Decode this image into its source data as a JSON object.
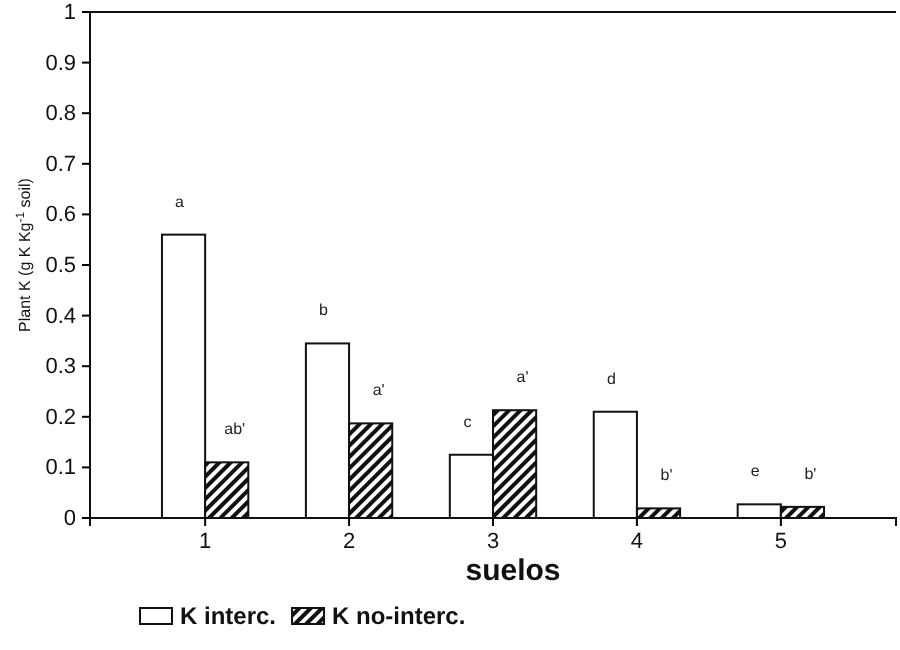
{
  "chart_data": {
    "type": "bar",
    "xlabel": "suelos",
    "ylabel": "Plant K (g K Kg$^{-1}$ soil)",
    "categories": [
      "1",
      "2",
      "3",
      "4",
      "5"
    ],
    "series": [
      {
        "name": "K interc.",
        "color": "#ffffff",
        "values": [
          0.56,
          0.345,
          0.125,
          0.21,
          0.027
        ]
      },
      {
        "name": "K no-interc.",
        "color": "#111111",
        "values": [
          0.11,
          0.187,
          0.213,
          0.019,
          0.022
        ]
      }
    ],
    "ylim": [
      0,
      1
    ],
    "yticks": [
      0,
      0.1,
      0.2,
      0.3,
      0.4,
      0.5,
      0.6,
      0.7,
      0.8,
      0.9,
      1
    ],
    "annotations": [
      {
        "text": "a",
        "x": "1",
        "y": 0.56
      },
      {
        "text": "ab'",
        "x": "1",
        "y": 0.11
      },
      {
        "text": "b",
        "x": "2",
        "y": 0.345
      },
      {
        "text": "a'",
        "x": "2",
        "y": 0.187
      },
      {
        "text": "c",
        "x": "3",
        "y": 0.125
      },
      {
        "text": "a'",
        "x": "3",
        "y": 0.213
      },
      {
        "text": "d",
        "x": "4",
        "y": 0.21
      },
      {
        "text": "b'",
        "x": "4",
        "y": 0.019
      },
      {
        "text": "e",
        "x": "5",
        "y": 0.027
      },
      {
        "text": "b'",
        "x": "5",
        "y": 0.022
      }
    ],
    "grid": false,
    "legend": "bottom"
  }
}
